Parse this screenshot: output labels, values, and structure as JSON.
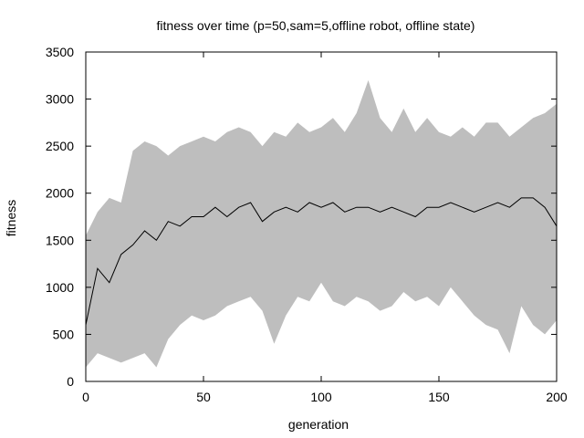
{
  "chart_data": {
    "type": "area",
    "title": "fitness over time (p=50,sam=5,offline robot, offline state)",
    "xlabel": "generation",
    "ylabel": "fitness",
    "xlim": [
      0,
      200
    ],
    "ylim": [
      0,
      3500
    ],
    "xticks": [
      0,
      50,
      100,
      150,
      200
    ],
    "yticks": [
      0,
      500,
      1000,
      1500,
      2000,
      2500,
      3000,
      3500
    ],
    "grid": false,
    "legend": "none",
    "colors": {
      "band": "#bebebe",
      "line": "#000000",
      "axis": "#000000"
    },
    "x": [
      0,
      5,
      10,
      15,
      20,
      25,
      30,
      35,
      40,
      45,
      50,
      55,
      60,
      65,
      70,
      75,
      80,
      85,
      90,
      95,
      100,
      105,
      110,
      115,
      120,
      125,
      130,
      135,
      140,
      145,
      150,
      155,
      160,
      165,
      170,
      175,
      180,
      185,
      190,
      195,
      200
    ],
    "series": [
      {
        "role": "band",
        "upper": [
          1550,
          1800,
          1950,
          1900,
          2450,
          2550,
          2500,
          2400,
          2500,
          2550,
          2600,
          2550,
          2650,
          2700,
          2650,
          2500,
          2650,
          2600,
          2750,
          2650,
          2700,
          2800,
          2650,
          2850,
          3200,
          2800,
          2650,
          2900,
          2650,
          2800,
          2650,
          2600,
          2700,
          2600,
          2750,
          2750,
          2600,
          2700,
          2800,
          2850,
          2950
        ],
        "lower": [
          150,
          300,
          250,
          200,
          250,
          300,
          150,
          450,
          600,
          700,
          650,
          700,
          800,
          850,
          900,
          750,
          400,
          700,
          900,
          850,
          1050,
          850,
          800,
          900,
          850,
          750,
          800,
          950,
          850,
          900,
          800,
          1000,
          850,
          700,
          600,
          550,
          300,
          800,
          600,
          500,
          650
        ]
      },
      {
        "role": "mean",
        "values": [
          600,
          1200,
          1050,
          1350,
          1450,
          1600,
          1500,
          1700,
          1650,
          1750,
          1750,
          1850,
          1750,
          1850,
          1900,
          1700,
          1800,
          1850,
          1800,
          1900,
          1850,
          1900,
          1800,
          1850,
          1850,
          1800,
          1850,
          1800,
          1750,
          1850,
          1850,
          1900,
          1850,
          1800,
          1850,
          1900,
          1850,
          1950,
          1950,
          1850,
          1650
        ]
      }
    ]
  }
}
